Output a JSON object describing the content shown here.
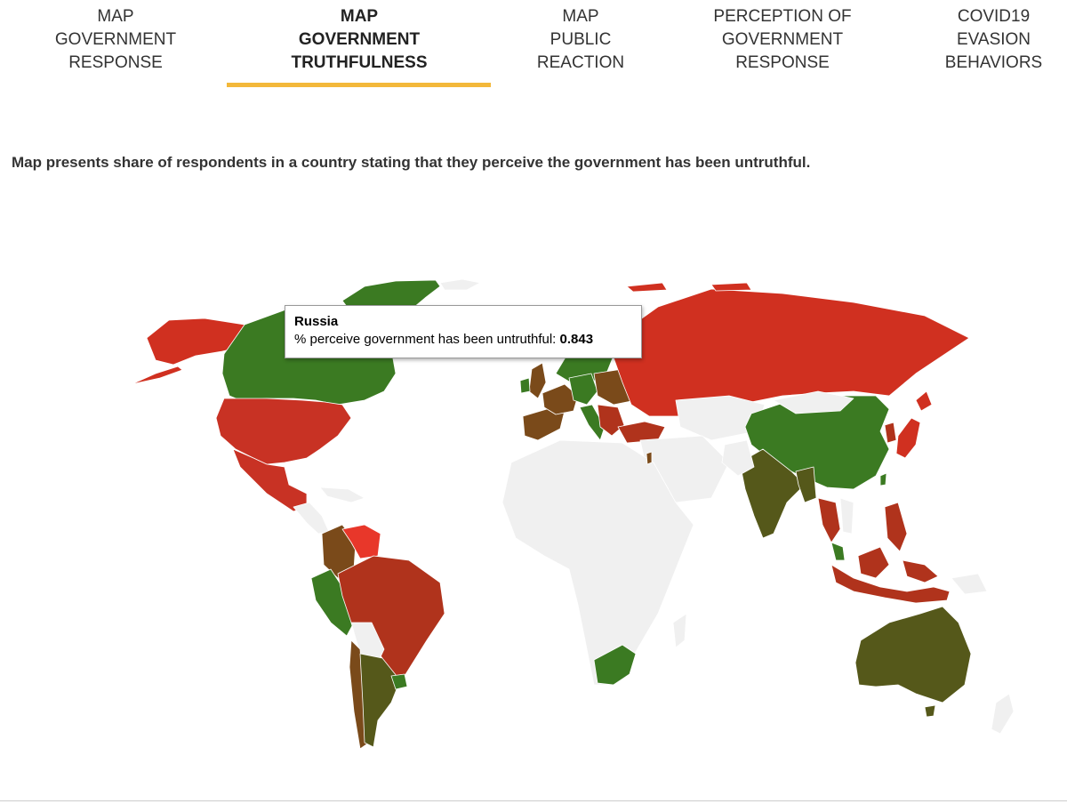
{
  "tabs": [
    {
      "lines": [
        "MAP",
        "GOVERNMENT",
        "RESPONSE"
      ],
      "active": false
    },
    {
      "lines": [
        "MAP",
        "GOVERNMENT",
        "TRUTHFULNESS"
      ],
      "active": true
    },
    {
      "lines": [
        "MAP",
        "PUBLIC",
        "REACTION"
      ],
      "active": false
    },
    {
      "lines": [
        "PERCEPTION OF",
        "GOVERNMENT",
        "RESPONSE"
      ],
      "active": false
    },
    {
      "lines": [
        "COVID19",
        "EVASION",
        "BEHAVIORS"
      ],
      "active": false
    }
  ],
  "description": "Map presents share of respondents in a country stating that they perceive the government has been untruthful.",
  "tooltip": {
    "country": "Russia",
    "label": "% perceive government has been untruthful: ",
    "value": "0.843"
  },
  "colors": {
    "accent": "#f3b83a",
    "high_untruthful": "#d03020",
    "very_high": "#e8372a",
    "mid_high": "#b0331c",
    "mid": "#7a4a1a",
    "mid_low": "#55581a",
    "low_untruthful": "#3b7a22",
    "no_data": "#f0f0f0",
    "border": "#cfcfcf"
  }
}
